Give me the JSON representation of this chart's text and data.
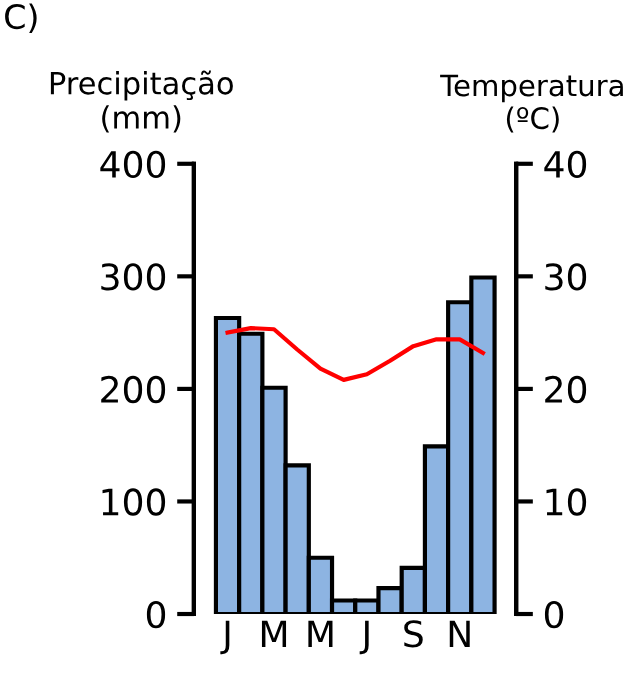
{
  "chart_data": {
    "type": "bar",
    "ylabel": "Precipitação\n(mm)",
    "y2label": "Temperatura\n(ºC)",
    "annotations": [
      "C)"
    ],
    "categories": [
      "J",
      null,
      "M",
      null,
      "M",
      null,
      "J",
      null,
      "S",
      null,
      "N",
      null
    ],
    "series": [
      {
        "color": "#8db4e2",
        "values": [
          263,
          249,
          201,
          132,
          50,
          12,
          12,
          23,
          41,
          149,
          277,
          299
        ]
      },
      {
        "type": "line",
        "axis": "y2",
        "color": "#ff0000",
        "values": [
          25,
          25.4,
          25.3,
          23.5,
          21.8,
          20.8,
          21.3,
          22.5,
          23.8,
          24.4,
          24.4,
          23.2
        ]
      }
    ],
    "ylim": [
      0,
      400
    ],
    "yticks": [
      0,
      100,
      200,
      300,
      400
    ],
    "y2lim": [
      0,
      40
    ],
    "y2ticks": [
      0,
      10,
      20,
      30,
      40
    ],
    "grid": false,
    "legend": false
  }
}
